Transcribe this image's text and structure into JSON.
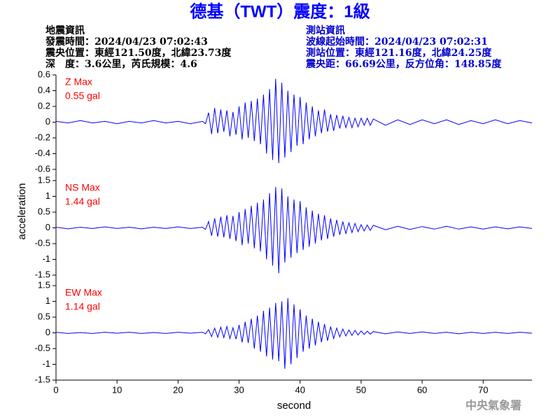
{
  "title": "德基（TWT）震度：1級",
  "event_info": [
    "地震資訊",
    "發震時間：2024/04/23 07:02:43",
    "震央位置：東經121.50度，北緯23.73度",
    "深　度：3.6公里，芮氏規模：4.6"
  ],
  "station_info": [
    "測站資訊",
    "波線起始時間：2024/04/23 07:02:31",
    "測站位置：東經121.16度，北緯24.25度",
    "震央距：66.69公里，反方位角：148.85度"
  ],
  "footer": "中央氣象署",
  "chart_data": [
    {
      "type": "line",
      "label": "Z Max",
      "max_label": "0.55 gal",
      "color": "#0000ff",
      "label_color": "#ff0000",
      "xlim": [
        0,
        78
      ],
      "ylim": [
        -0.6,
        0.6
      ],
      "yticks": [
        0.6,
        0.4,
        0.2,
        0,
        -0.2,
        -0.4,
        -0.6
      ],
      "x": [
        0,
        2,
        4,
        6,
        8,
        10,
        12,
        14,
        16,
        18,
        20,
        22,
        24,
        24.5,
        25,
        25.5,
        26,
        26.5,
        27,
        27.5,
        28,
        28.5,
        29,
        29.5,
        30,
        30.5,
        31,
        31.5,
        32,
        32.5,
        33,
        33.5,
        34,
        34.5,
        35,
        35.5,
        36,
        36.5,
        37,
        37.5,
        38,
        38.5,
        39,
        39.5,
        40,
        40.5,
        41,
        41.5,
        42,
        42.5,
        43,
        43.5,
        44,
        44.5,
        45,
        45.5,
        46,
        46.5,
        47,
        47.5,
        48,
        48.5,
        49,
        49.5,
        50,
        50.5,
        51,
        51.5,
        52,
        54,
        56,
        58,
        60,
        62,
        64,
        66,
        68,
        70,
        72,
        74,
        76,
        78
      ],
      "values": [
        0.01,
        -0.01,
        0.02,
        -0.01,
        0.01,
        -0.02,
        0.01,
        -0.01,
        0.02,
        -0.01,
        0.01,
        -0.02,
        0.01,
        -0.02,
        0.12,
        -0.15,
        0.18,
        -0.14,
        0.16,
        -0.12,
        0.15,
        -0.18,
        0.13,
        -0.16,
        0.2,
        -0.22,
        0.25,
        -0.2,
        0.27,
        -0.24,
        0.3,
        -0.28,
        0.35,
        -0.4,
        0.42,
        -0.48,
        0.55,
        -0.52,
        0.5,
        -0.45,
        0.4,
        -0.38,
        0.35,
        -0.3,
        0.32,
        -0.28,
        0.25,
        -0.22,
        0.2,
        -0.18,
        0.15,
        -0.14,
        0.16,
        -0.12,
        0.1,
        -0.11,
        0.09,
        -0.08,
        0.08,
        -0.07,
        0.06,
        -0.07,
        0.05,
        -0.06,
        0.05,
        -0.04,
        0.05,
        -0.04,
        0.04,
        -0.04,
        0.03,
        -0.03,
        0.03,
        -0.02,
        0.03,
        -0.03,
        0.02,
        -0.02,
        0.03,
        -0.02,
        0.02,
        -0.01
      ]
    },
    {
      "type": "line",
      "label": "NS Max",
      "max_label": "1.44 gal",
      "color": "#0000ff",
      "label_color": "#ff0000",
      "ylabel": "acceleration",
      "xlim": [
        0,
        78
      ],
      "ylim": [
        -1.5,
        1.5
      ],
      "yticks": [
        1.5,
        1,
        0.5,
        0,
        -0.5,
        -1,
        -1.5
      ],
      "x": [
        0,
        2,
        4,
        6,
        8,
        10,
        12,
        14,
        16,
        18,
        20,
        22,
        24,
        24.5,
        25,
        25.5,
        26,
        26.5,
        27,
        27.5,
        28,
        28.5,
        29,
        29.5,
        30,
        30.5,
        31,
        31.5,
        32,
        32.5,
        33,
        33.5,
        34,
        34.5,
        35,
        35.5,
        36,
        36.5,
        37,
        37.5,
        38,
        38.5,
        39,
        39.5,
        40,
        40.5,
        41,
        41.5,
        42,
        42.5,
        43,
        43.5,
        44,
        44.5,
        45,
        45.5,
        46,
        46.5,
        47,
        47.5,
        48,
        48.5,
        49,
        49.5,
        50,
        50.5,
        51,
        51.5,
        52,
        54,
        56,
        58,
        60,
        62,
        64,
        66,
        68,
        70,
        72,
        74,
        76,
        78
      ],
      "values": [
        0.02,
        -0.03,
        0.02,
        -0.02,
        0.03,
        -0.02,
        0.02,
        -0.03,
        0.02,
        -0.02,
        0.03,
        -0.02,
        0.02,
        -0.05,
        0.2,
        -0.25,
        0.3,
        -0.28,
        0.35,
        -0.3,
        0.4,
        -0.35,
        0.38,
        -0.42,
        0.5,
        -0.55,
        0.6,
        -0.5,
        0.7,
        -0.65,
        0.8,
        -0.75,
        0.9,
        -1.0,
        1.1,
        -1.2,
        1.3,
        -1.44,
        1.25,
        -1.1,
        1.0,
        -0.95,
        0.9,
        -0.8,
        0.85,
        -0.7,
        0.65,
        -0.6,
        0.55,
        -0.5,
        0.45,
        -0.4,
        0.4,
        -0.35,
        0.3,
        -0.28,
        0.25,
        -0.22,
        0.2,
        -0.18,
        0.16,
        -0.15,
        0.14,
        -0.12,
        0.1,
        -0.1,
        0.09,
        -0.08,
        0.08,
        -0.06,
        0.05,
        -0.05,
        0.04,
        -0.04,
        0.05,
        -0.04,
        0.03,
        -0.04,
        0.03,
        -0.03,
        0.03,
        -0.02
      ]
    },
    {
      "type": "line",
      "label": "EW Max",
      "max_label": "1.14 gal",
      "color": "#0000ff",
      "label_color": "#ff0000",
      "xlabel": "second",
      "xlim": [
        0,
        78
      ],
      "ylim": [
        -1.5,
        1.5
      ],
      "yticks": [
        1.5,
        1,
        0.5,
        0,
        -0.5,
        -1,
        -1.5
      ],
      "xticks": [
        0,
        10,
        20,
        30,
        40,
        50,
        60,
        70
      ],
      "x": [
        0,
        2,
        4,
        6,
        8,
        10,
        12,
        14,
        16,
        18,
        20,
        22,
        24,
        24.5,
        25,
        25.5,
        26,
        26.5,
        27,
        27.5,
        28,
        28.5,
        29,
        29.5,
        30,
        30.5,
        31,
        31.5,
        32,
        32.5,
        33,
        33.5,
        34,
        34.5,
        35,
        35.5,
        36,
        36.5,
        37,
        37.5,
        38,
        38.5,
        39,
        39.5,
        40,
        40.5,
        41,
        41.5,
        42,
        42.5,
        43,
        43.5,
        44,
        44.5,
        45,
        45.5,
        46,
        46.5,
        47,
        47.5,
        48,
        48.5,
        49,
        49.5,
        50,
        50.5,
        51,
        51.5,
        52,
        54,
        56,
        58,
        60,
        62,
        64,
        66,
        68,
        70,
        72,
        74,
        76,
        78
      ],
      "values": [
        0.02,
        -0.02,
        0.01,
        -0.02,
        0.02,
        -0.01,
        0.02,
        -0.02,
        0.01,
        -0.02,
        0.02,
        -0.01,
        0.02,
        -0.03,
        0.1,
        -0.12,
        0.15,
        -0.14,
        0.18,
        -0.15,
        0.2,
        -0.18,
        0.16,
        -0.2,
        0.25,
        -0.3,
        0.35,
        -0.32,
        0.45,
        -0.5,
        0.55,
        -0.6,
        0.7,
        -0.75,
        0.8,
        -0.85,
        0.95,
        -0.9,
        1.0,
        -1.14,
        1.1,
        -1.0,
        0.9,
        -0.8,
        0.75,
        -0.6,
        0.55,
        -0.5,
        0.45,
        -0.4,
        0.35,
        -0.3,
        0.28,
        -0.25,
        0.2,
        -0.18,
        0.15,
        -0.13,
        0.12,
        -0.1,
        0.09,
        -0.08,
        0.08,
        -0.07,
        0.06,
        -0.05,
        0.05,
        -0.04,
        0.04,
        -0.03,
        0.03,
        -0.02,
        0.03,
        -0.02,
        0.02,
        -0.03,
        0.02,
        -0.02,
        0.02,
        -0.02,
        0.02,
        -0.01
      ]
    }
  ]
}
